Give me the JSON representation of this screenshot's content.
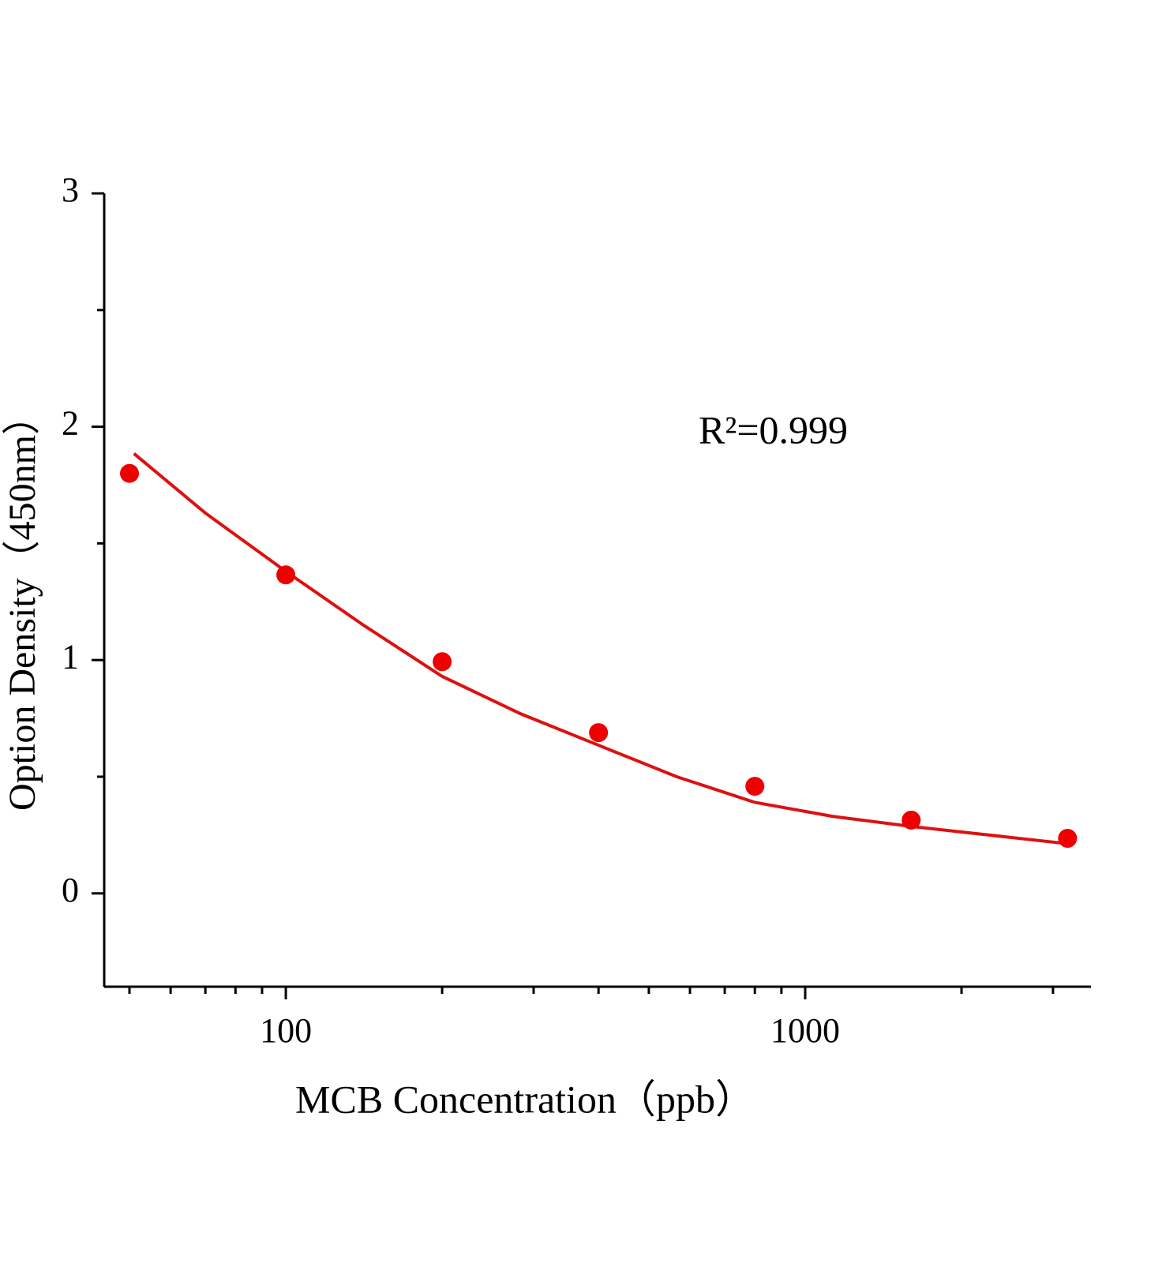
{
  "chart_data": {
    "type": "scatter",
    "x_label": "MCB Concentration（ppb）",
    "y_label": "Option Density（450nm）",
    "annotation": "R²=0.999",
    "xscale": "log",
    "xlim": [
      44.7,
      3550
    ],
    "xticks": [
      100,
      1000
    ],
    "xminorticks": [
      50,
      60,
      70,
      80,
      90,
      200,
      300,
      400,
      500,
      600,
      700,
      800,
      900,
      2000,
      3000
    ],
    "ylim": [
      -0.4,
      3
    ],
    "yticks": [
      0,
      1,
      2,
      3
    ],
    "yminorticks": [
      0.5,
      1.5,
      2.5
    ],
    "series": [
      {
        "type": "scatter",
        "color": "#ee0000",
        "x": [
          50,
          100,
          200,
          400,
          800,
          1600,
          3200
        ],
        "values": [
          1.8,
          1.365,
          0.993,
          0.689,
          0.459,
          0.314,
          0.236
        ]
      },
      {
        "type": "line",
        "color": "#dd1111",
        "x": [
          51,
          70,
          100,
          141,
          200,
          283,
          400,
          566,
          800,
          1131,
          1600,
          2263,
          3200
        ],
        "values": [
          1.885,
          1.63,
          1.38,
          1.15,
          0.93,
          0.77,
          0.635,
          0.5,
          0.39,
          0.33,
          0.287,
          0.25,
          0.213
        ]
      }
    ]
  }
}
